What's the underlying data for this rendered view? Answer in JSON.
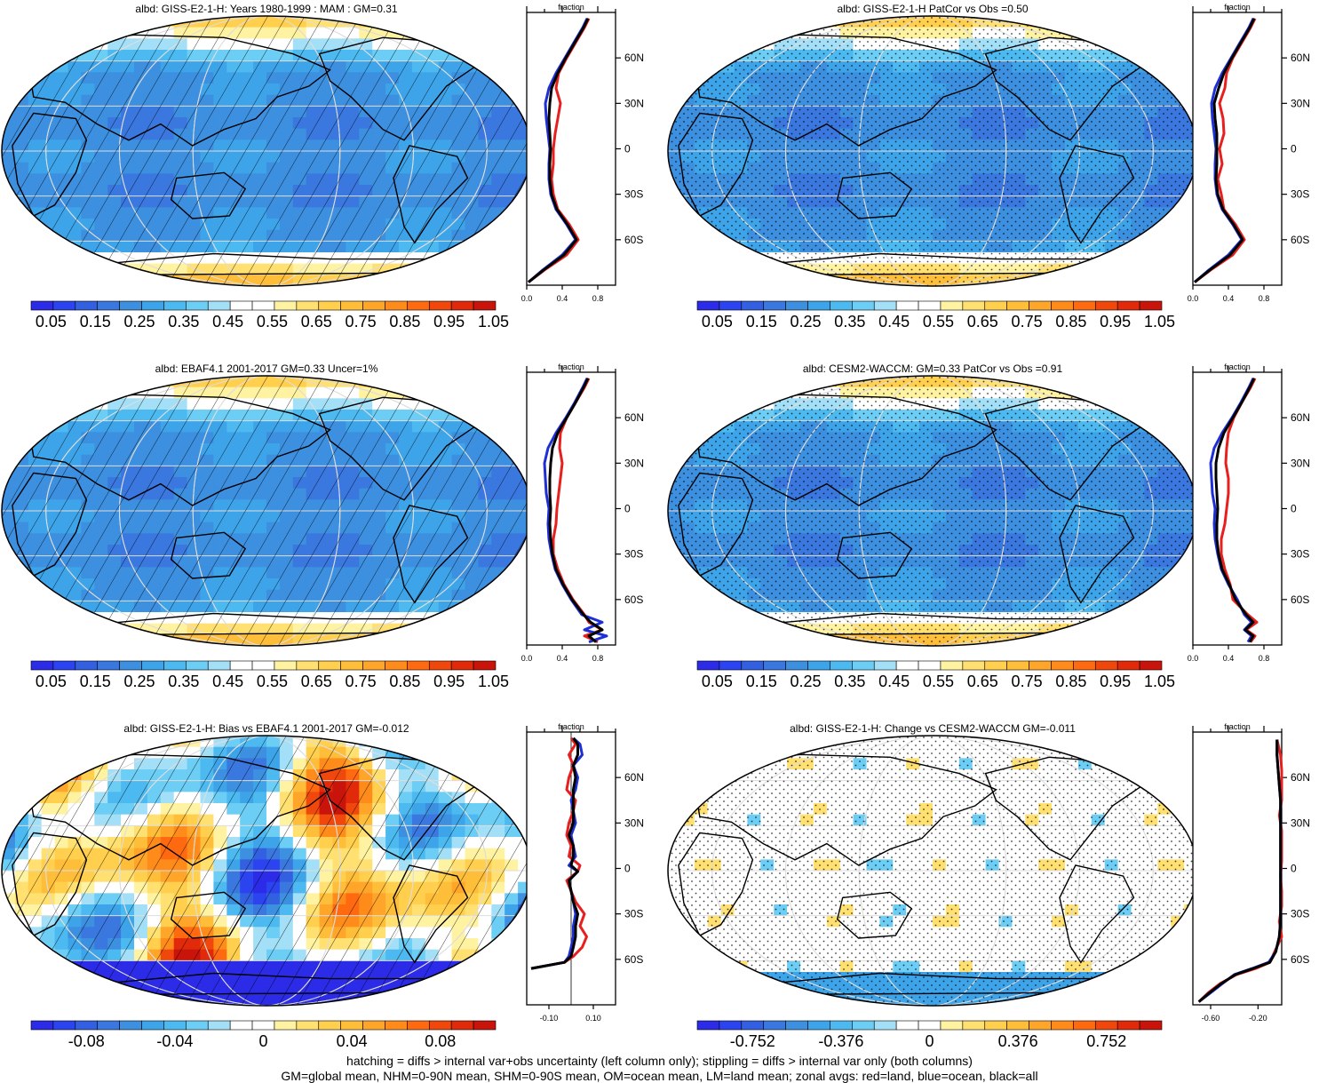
{
  "footer": {
    "line1": "hatching = diffs > internal var+obs uncertainty (left column only); stippling = diffs > internal var only (both columns)",
    "line2": "GM=global mean, NHM=0-90N mean, SHM=0-90S mean, OM=ocean mean, LM=land mean; zonal avgs: red=land, blue=ocean, black=all"
  },
  "colors": {
    "land": "#e81f1f",
    "ocean": "#1f2fd6",
    "all": "#000000",
    "map_scale": [
      "#2b2be8",
      "#2b44f0",
      "#3360e0",
      "#3a78e0",
      "#3d8fe0",
      "#3ea4ea",
      "#4cbaf0",
      "#6ccdf5",
      "#a3e0f7",
      "#ffffff",
      "#ffffff",
      "#fff2a0",
      "#ffe070",
      "#ffcf4d",
      "#ffbe3a",
      "#ffa52a",
      "#ff8c1a",
      "#ff6a10",
      "#f0480c",
      "#e02a0a",
      "#c8140a"
    ]
  },
  "lat_ticks": [
    "60N",
    "30N",
    "0",
    "30S",
    "60S"
  ],
  "chart_data": [
    {
      "type": "heatmap",
      "title": "albd: GISS-E2-1-H: Years 1980-1999 : MAM : GM=0.31",
      "style": "abs",
      "pattern": "hatch",
      "colorbar_ticks": [
        "0.05",
        "0.15",
        "0.25",
        "0.35",
        "0.45",
        "0.55",
        "0.65",
        "0.75",
        "0.85",
        "0.95",
        "1.05"
      ],
      "zonal": {
        "xlabel": "fraction",
        "xticks": [
          "0.0",
          "0.4",
          "0.8"
        ],
        "xlim": [
          0.0,
          1.0
        ],
        "lat": [
          -88,
          -80,
          -70,
          -60,
          -50,
          -40,
          -30,
          -20,
          -10,
          0,
          10,
          20,
          30,
          40,
          50,
          60,
          70,
          80,
          86
        ],
        "land": [
          0.02,
          0.2,
          0.45,
          0.58,
          0.48,
          0.35,
          0.3,
          0.28,
          0.3,
          0.3,
          0.32,
          0.35,
          0.38,
          0.33,
          0.36,
          0.45,
          0.55,
          0.65,
          0.7
        ],
        "ocean": [
          0.02,
          0.18,
          0.4,
          0.55,
          0.45,
          0.33,
          0.27,
          0.25,
          0.25,
          0.26,
          0.24,
          0.22,
          0.21,
          0.25,
          0.33,
          0.43,
          0.53,
          0.63,
          0.68
        ],
        "all": [
          0.02,
          0.19,
          0.42,
          0.56,
          0.46,
          0.34,
          0.28,
          0.26,
          0.26,
          0.27,
          0.26,
          0.25,
          0.26,
          0.28,
          0.35,
          0.44,
          0.54,
          0.64,
          0.69
        ]
      }
    },
    {
      "type": "heatmap",
      "title": "albd: GISS-E2-1-H PatCor vs Obs =0.50",
      "style": "abs",
      "pattern": "stipple",
      "colorbar_ticks": [
        "0.05",
        "0.15",
        "0.25",
        "0.35",
        "0.45",
        "0.55",
        "0.65",
        "0.75",
        "0.85",
        "0.95",
        "1.05"
      ],
      "zonal": {
        "xlabel": "fraction",
        "xticks": [
          "0.0",
          "0.4",
          "0.8"
        ],
        "xlim": [
          0.0,
          1.0
        ],
        "lat": [
          -88,
          -80,
          -70,
          -60,
          -50,
          -40,
          -30,
          -20,
          -10,
          0,
          10,
          20,
          30,
          40,
          50,
          60,
          70,
          80,
          86
        ],
        "land": [
          0.02,
          0.2,
          0.45,
          0.58,
          0.48,
          0.35,
          0.32,
          0.28,
          0.33,
          0.3,
          0.35,
          0.34,
          0.3,
          0.36,
          0.38,
          0.45,
          0.55,
          0.65,
          0.7
        ],
        "ocean": [
          0.02,
          0.18,
          0.4,
          0.55,
          0.45,
          0.33,
          0.27,
          0.25,
          0.25,
          0.26,
          0.24,
          0.22,
          0.21,
          0.25,
          0.33,
          0.43,
          0.53,
          0.63,
          0.68
        ],
        "all": [
          0.02,
          0.19,
          0.42,
          0.56,
          0.46,
          0.34,
          0.28,
          0.26,
          0.27,
          0.27,
          0.27,
          0.25,
          0.24,
          0.29,
          0.35,
          0.44,
          0.54,
          0.64,
          0.69
        ]
      }
    },
    {
      "type": "heatmap",
      "title": "albd: EBAF4.1 2001-2017 GM=0.33 Uncer=1%",
      "style": "abs",
      "pattern": "hatch",
      "colorbar_ticks": [
        "0.05",
        "0.15",
        "0.25",
        "0.35",
        "0.45",
        "0.55",
        "0.65",
        "0.75",
        "0.85",
        "0.95",
        "1.05"
      ],
      "zonal": {
        "xlabel": "fraction",
        "xticks": [
          "0.0",
          "0.4",
          "0.8"
        ],
        "xlim": [
          0.0,
          1.0
        ],
        "lat": [
          -88,
          -84,
          -80,
          -75,
          -70,
          -60,
          -50,
          -40,
          -30,
          -20,
          -10,
          0,
          10,
          20,
          30,
          40,
          50,
          60,
          70,
          80,
          86
        ],
        "land": [
          0.8,
          0.65,
          0.85,
          0.7,
          0.65,
          0.52,
          0.42,
          0.35,
          0.3,
          0.3,
          0.33,
          0.34,
          0.36,
          0.38,
          0.4,
          0.37,
          0.38,
          0.45,
          0.55,
          0.65,
          0.7
        ],
        "ocean": [
          0.7,
          0.9,
          0.65,
          0.85,
          0.62,
          0.5,
          0.4,
          0.32,
          0.28,
          0.25,
          0.24,
          0.25,
          0.22,
          0.21,
          0.2,
          0.24,
          0.33,
          0.44,
          0.54,
          0.63,
          0.68
        ],
        "all": [
          0.78,
          0.7,
          0.85,
          0.72,
          0.64,
          0.51,
          0.41,
          0.33,
          0.29,
          0.27,
          0.26,
          0.27,
          0.26,
          0.26,
          0.27,
          0.29,
          0.35,
          0.45,
          0.55,
          0.64,
          0.69
        ]
      }
    },
    {
      "type": "heatmap",
      "title": "albd: CESM2-WACCM: GM=0.33 PatCor vs Obs =0.91",
      "style": "abs",
      "pattern": "stipple",
      "colorbar_ticks": [
        "0.05",
        "0.15",
        "0.25",
        "0.35",
        "0.45",
        "0.55",
        "0.65",
        "0.75",
        "0.85",
        "0.95",
        "1.05"
      ],
      "zonal": {
        "xlabel": "fraction",
        "xticks": [
          "0.0",
          "0.4",
          "0.8"
        ],
        "xlim": [
          0.0,
          1.0
        ],
        "lat": [
          -88,
          -84,
          -80,
          -75,
          -70,
          -60,
          -50,
          -40,
          -30,
          -20,
          -10,
          0,
          10,
          20,
          30,
          40,
          50,
          60,
          70,
          80,
          86
        ],
        "land": [
          0.65,
          0.7,
          0.6,
          0.72,
          0.62,
          0.45,
          0.42,
          0.36,
          0.32,
          0.32,
          0.36,
          0.38,
          0.4,
          0.4,
          0.37,
          0.38,
          0.4,
          0.46,
          0.55,
          0.65,
          0.7
        ],
        "ocean": [
          0.62,
          0.66,
          0.58,
          0.66,
          0.58,
          0.5,
          0.4,
          0.32,
          0.28,
          0.25,
          0.24,
          0.25,
          0.22,
          0.21,
          0.2,
          0.24,
          0.33,
          0.44,
          0.54,
          0.63,
          0.68
        ],
        "all": [
          0.64,
          0.68,
          0.59,
          0.68,
          0.6,
          0.48,
          0.41,
          0.33,
          0.29,
          0.27,
          0.27,
          0.28,
          0.27,
          0.26,
          0.26,
          0.29,
          0.35,
          0.45,
          0.55,
          0.64,
          0.69
        ]
      }
    },
    {
      "type": "heatmap",
      "title": "albd: GISS-E2-1-H: Bias vs EBAF4.1 2001-2017 GM=-0.012",
      "style": "bias",
      "pattern": "hatch",
      "colorbar_ticks": [
        "-0.08",
        "-0.04",
        "0",
        "0.04",
        "0.08"
      ],
      "zonal": {
        "xlabel": "fraction",
        "xticks": [
          "-0.10",
          "0.10"
        ],
        "xlim": [
          -0.2,
          0.2
        ],
        "lat": [
          -66,
          -62,
          -58,
          -52,
          -45,
          -38,
          -30,
          -22,
          -15,
          -8,
          -2,
          2,
          8,
          15,
          22,
          30,
          38,
          45,
          52,
          60,
          68,
          75,
          82,
          86
        ],
        "land": [
          -0.18,
          -0.03,
          0.01,
          0.05,
          0.07,
          0.04,
          0.06,
          0.02,
          0.0,
          -0.02,
          0.03,
          0.04,
          -0.01,
          0.0,
          -0.02,
          -0.01,
          0.01,
          0.02,
          -0.02,
          -0.01,
          0.01,
          -0.01,
          0.02,
          0.0
        ],
        "ocean": [
          -0.18,
          -0.03,
          -0.01,
          0.0,
          0.01,
          0.01,
          0.02,
          0.01,
          0.0,
          -0.01,
          0.03,
          -0.01,
          0.02,
          0.01,
          0.0,
          0.02,
          0.01,
          0.0,
          0.02,
          0.03,
          0.01,
          0.05,
          0.04,
          0.01
        ],
        "all": [
          -0.18,
          -0.03,
          0.0,
          0.01,
          0.02,
          0.02,
          0.03,
          0.01,
          0.0,
          -0.01,
          0.03,
          0.0,
          0.01,
          0.01,
          -0.01,
          0.01,
          0.01,
          0.01,
          0.01,
          0.02,
          0.01,
          0.03,
          0.03,
          0.01
        ]
      }
    },
    {
      "type": "heatmap",
      "title": "albd: GISS-E2-1-H: Change vs CESM2-WACCM GM=-0.011",
      "style": "change",
      "pattern": "stipple",
      "colorbar_ticks": [
        "-0.752",
        "-0.376",
        "0",
        "0.376",
        "0.752"
      ],
      "zonal": {
        "xlabel": "fraction",
        "xticks": [
          "-0.60",
          "-0.20"
        ],
        "xlim": [
          -0.75,
          0.0
        ],
        "lat": [
          -88,
          -82,
          -76,
          -70,
          -66,
          -62,
          -55,
          -45,
          -35,
          -25,
          -15,
          -5,
          5,
          15,
          25,
          35,
          45,
          55,
          65,
          75,
          85
        ],
        "land": [
          -0.7,
          -0.62,
          -0.52,
          -0.38,
          -0.22,
          -0.1,
          -0.06,
          0.0,
          -0.02,
          0.0,
          0.0,
          -0.01,
          0.0,
          0.0,
          0.0,
          -0.02,
          0.0,
          0.0,
          0.0,
          -0.01,
          -0.04
        ],
        "ocean": [
          -0.7,
          -0.6,
          -0.5,
          -0.4,
          -0.25,
          -0.11,
          -0.05,
          -0.02,
          -0.01,
          -0.01,
          -0.01,
          -0.01,
          -0.01,
          -0.01,
          -0.01,
          -0.01,
          -0.01,
          -0.02,
          -0.03,
          -0.04,
          -0.04
        ],
        "all": [
          -0.7,
          -0.61,
          -0.51,
          -0.39,
          -0.24,
          -0.1,
          -0.05,
          -0.02,
          -0.01,
          -0.01,
          -0.01,
          -0.01,
          -0.01,
          -0.01,
          -0.01,
          -0.01,
          -0.01,
          -0.02,
          -0.03,
          -0.04,
          -0.04
        ]
      }
    }
  ]
}
